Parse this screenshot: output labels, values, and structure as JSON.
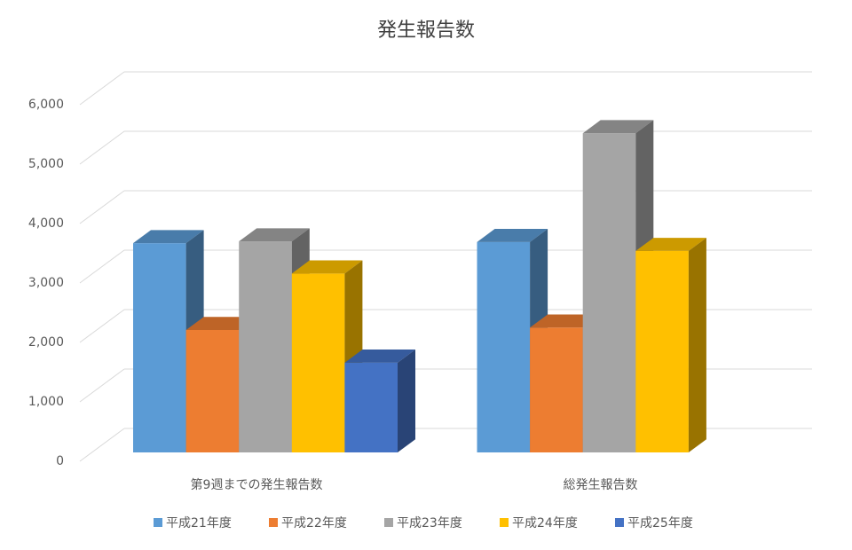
{
  "chart_data": {
    "type": "bar3d",
    "title": "発生報告数",
    "categories": [
      "第9週までの発生報告数",
      "総発生報告数"
    ],
    "series": [
      {
        "name": "平成21年度",
        "color": "#5b9bd5",
        "values": [
          3520,
          3540
        ]
      },
      {
        "name": "平成22年度",
        "color": "#ed7d31",
        "values": [
          2060,
          2100
        ]
      },
      {
        "name": "平成23年度",
        "color": "#a5a5a5",
        "values": [
          3550,
          5370
        ]
      },
      {
        "name": "平成24年度",
        "color": "#ffc000",
        "values": [
          3010,
          3390
        ]
      },
      {
        "name": "平成25年度",
        "color": "#4472c4",
        "values": [
          1510,
          null
        ]
      }
    ],
    "ylim": [
      0,
      6000
    ],
    "yticks": [
      0,
      {
        "value": 1000,
        "label": "1,000"
      },
      {
        "value": 2000,
        "label": "2,000"
      },
      {
        "value": 3000,
        "label": "3,000"
      },
      {
        "value": 4000,
        "label": "4,000"
      },
      {
        "value": 5000,
        "label": "5,000"
      },
      {
        "value": 6000,
        "label": "6,000"
      }
    ],
    "grid": true,
    "legend": "bottom"
  }
}
